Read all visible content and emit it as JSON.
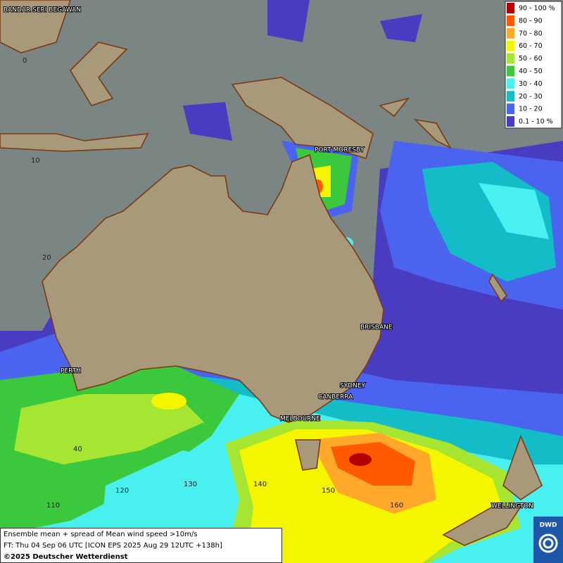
{
  "map": {
    "legend": [
      {
        "label": "90 - 100 %",
        "color": "#b40000"
      },
      {
        "label": "80 - 90",
        "color": "#ff5a00"
      },
      {
        "label": "70 - 80",
        "color": "#ffa82a"
      },
      {
        "label": "60 - 70",
        "color": "#f5f500"
      },
      {
        "label": "50 - 60",
        "color": "#a6e632"
      },
      {
        "label": "40 - 50",
        "color": "#3cc83c"
      },
      {
        "label": "30 - 40",
        "color": "#48f0f0"
      },
      {
        "label": "20 - 30",
        "color": "#14bcc8"
      },
      {
        "label": "10 - 20",
        "color": "#4a64f0"
      },
      {
        "label": "0.1 - 10 %",
        "color": "#4a3cc0"
      }
    ],
    "places": [
      "BANDAR SERI BEGAWAN",
      "PORT MORESBY",
      "BRISBANE",
      "PERTH",
      "SYDNEY",
      "CANBERRA",
      "MELBOURNE",
      "WELLINGTON"
    ],
    "latitude_labels": [
      "0",
      "10",
      "20",
      "40"
    ],
    "longitude_labels": [
      "110",
      "120",
      "130",
      "140",
      "150",
      "160"
    ]
  },
  "footer": {
    "lines": [
      "Ensemble mean + spread of Mean wind speed >10m/s",
      "FT: Thu 04 Sep 06 UTC [ICON EPS 2025 Aug 29 12UTC +138h]",
      "©2025 Deutscher Wetterdienst"
    ]
  },
  "logo": "DWD"
}
